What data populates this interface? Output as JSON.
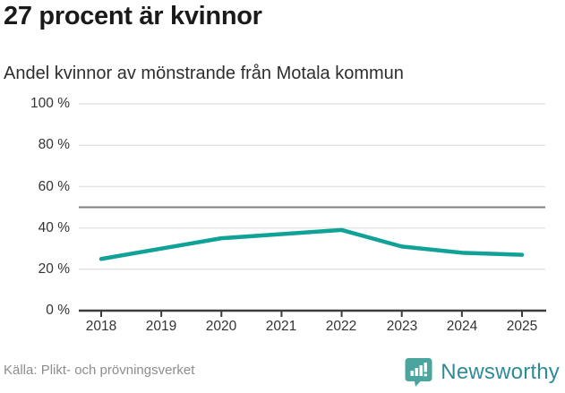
{
  "header": {
    "title": "27 procent är kvinnor",
    "subtitle": "Andel kvinnor av mönstrande från Motala kommun"
  },
  "chart_data": {
    "type": "line",
    "title": "27 procent är kvinnor",
    "subtitle": "Andel kvinnor av mönstrande från Motala kommun",
    "categories": [
      "2018",
      "2019",
      "2020",
      "2021",
      "2022",
      "2023",
      "2024",
      "2025"
    ],
    "series": [
      {
        "name": "Andel kvinnor av mönstrande",
        "values": [
          25,
          30,
          35,
          37,
          39,
          31,
          28,
          27
        ]
      }
    ],
    "unit": "%",
    "ylim": [
      0,
      100
    ],
    "yticks": [
      100,
      80,
      60,
      40,
      20,
      0
    ],
    "ytick_labels": [
      "100 %",
      "80 %",
      "60 %",
      "40 %",
      "20 %",
      "0 %"
    ],
    "gridline_values": [
      100,
      80,
      60,
      40,
      20
    ],
    "reference_line": 50,
    "grid": true,
    "legend_position": "none",
    "colors": {
      "line": "#11a297",
      "grid": "#e4e4e4",
      "reference": "#7d7d7d",
      "axis": "#3d3d3d",
      "tick_label": "#333333"
    }
  },
  "footer": {
    "source": "Källa: Plikt- och prövningsverket",
    "brand": "Newsworthy",
    "brand_icon": "newsworthy-speech-bubble-bar-chart-icon",
    "brand_color": "#2f8b96",
    "icon_color": "#4aa59e"
  }
}
